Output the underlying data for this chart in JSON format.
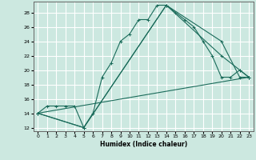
{
  "xlabel": "Humidex (Indice chaleur)",
  "bg_color": "#cce8e0",
  "grid_color": "#ffffff",
  "line_color": "#1a6b5a",
  "xlim": [
    -0.5,
    23.5
  ],
  "ylim": [
    11.5,
    29.5
  ],
  "xticks": [
    0,
    1,
    2,
    3,
    4,
    5,
    6,
    7,
    8,
    9,
    10,
    11,
    12,
    13,
    14,
    15,
    16,
    17,
    18,
    19,
    20,
    21,
    22,
    23
  ],
  "yticks": [
    12,
    14,
    16,
    18,
    20,
    22,
    24,
    26,
    28
  ],
  "series1_x": [
    0,
    1,
    2,
    3,
    4,
    5,
    6,
    7,
    8,
    9,
    10,
    11,
    12,
    13,
    14,
    15,
    16,
    17,
    18,
    19,
    20,
    21,
    22,
    23
  ],
  "series1_y": [
    14,
    15,
    15,
    15,
    15,
    12,
    14,
    19,
    21,
    24,
    25,
    27,
    27,
    29,
    29,
    28,
    27,
    26,
    24,
    22,
    19,
    19,
    20,
    19
  ],
  "series2_x": [
    0,
    5,
    14,
    20,
    22,
    23
  ],
  "series2_y": [
    14,
    12,
    29,
    22,
    20,
    19
  ],
  "series3_x": [
    0,
    5,
    14,
    20,
    22,
    23
  ],
  "series3_y": [
    14,
    12,
    29,
    24,
    19,
    19
  ],
  "series4_x": [
    0,
    23
  ],
  "series4_y": [
    14,
    19
  ]
}
